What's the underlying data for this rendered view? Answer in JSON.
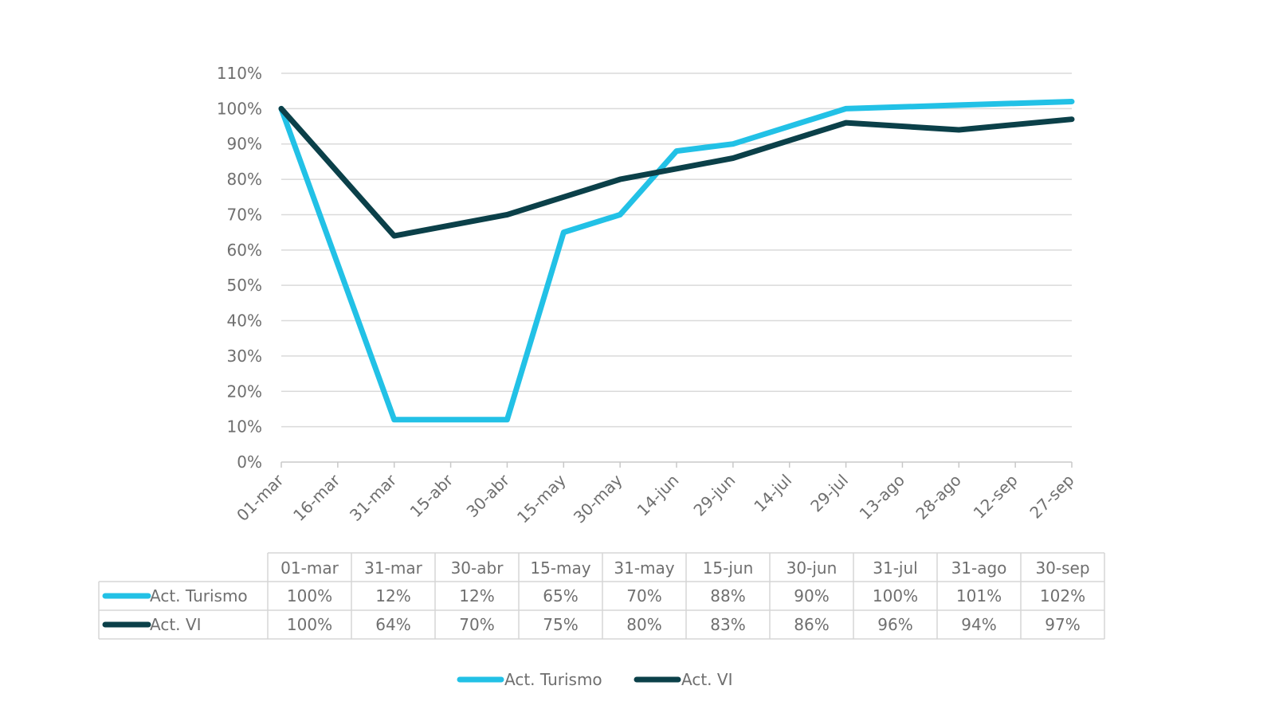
{
  "chart_data": {
    "type": "line",
    "title": "",
    "xlabel": "",
    "ylabel": "",
    "ylim": [
      0,
      110
    ],
    "y_tick_step": 10,
    "y_tick_suffix": "%",
    "grid": "horizontal",
    "legend_position": "bottom-center",
    "x": [
      "01-mar",
      "16-mar",
      "31-mar",
      "15-abr",
      "30-abr",
      "15-may",
      "30-may",
      "14-jun",
      "29-jun",
      "14-jul",
      "29-jul",
      "13-ago",
      "28-ago",
      "12-sep",
      "27-sep"
    ],
    "series": [
      {
        "name": "Act. Turismo",
        "color": "#22c1e6",
        "points": [
          [
            0,
            100
          ],
          [
            2,
            12
          ],
          [
            4,
            12
          ],
          [
            5,
            65
          ],
          [
            6,
            70
          ],
          [
            7,
            88
          ],
          [
            8,
            90
          ],
          [
            10,
            100
          ],
          [
            12,
            101
          ],
          [
            14,
            102
          ]
        ]
      },
      {
        "name": "Act. VI",
        "color": "#0b4049",
        "points": [
          [
            0,
            100
          ],
          [
            2,
            64
          ],
          [
            4,
            70
          ],
          [
            5,
            75
          ],
          [
            6,
            80
          ],
          [
            7,
            83
          ],
          [
            8,
            86
          ],
          [
            10,
            96
          ],
          [
            12,
            94
          ],
          [
            14,
            97
          ]
        ]
      }
    ],
    "table": {
      "columns": [
        "01-mar",
        "31-mar",
        "30-abr",
        "15-may",
        "31-may",
        "15-jun",
        "30-jun",
        "31-jul",
        "31-ago",
        "30-sep"
      ],
      "rows": [
        {
          "name": "Act. Turismo",
          "color": "#22c1e6",
          "values": [
            "100%",
            "12%",
            "12%",
            "65%",
            "70%",
            "88%",
            "90%",
            "100%",
            "101%",
            "102%"
          ]
        },
        {
          "name": "Act. VI",
          "color": "#0b4049",
          "values": [
            "100%",
            "64%",
            "70%",
            "75%",
            "80%",
            "83%",
            "86%",
            "96%",
            "94%",
            "97%"
          ]
        }
      ]
    }
  }
}
